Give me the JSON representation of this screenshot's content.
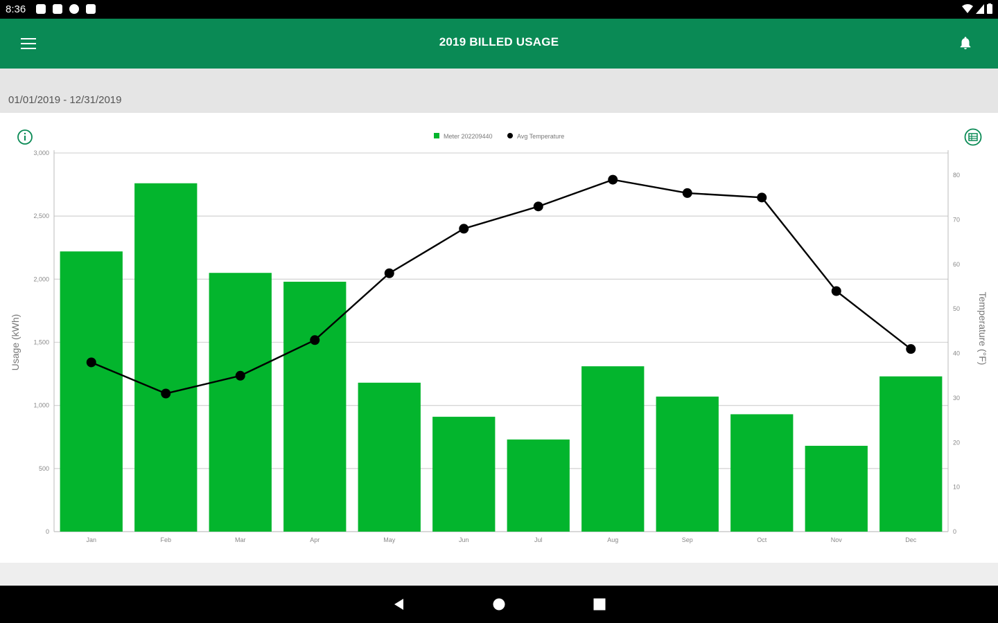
{
  "status_bar": {
    "time": "8:36"
  },
  "app_bar": {
    "title": "2019 BILLED USAGE"
  },
  "date_range": "01/01/2019 - 12/31/2019",
  "colors": {
    "primary": "#0a8a55",
    "bar": "#03b52d",
    "line": "#000000",
    "band": "#e5e5e5"
  },
  "icons": {
    "menu": "menu-icon",
    "bell": "bell-icon",
    "info": "info-icon",
    "table": "table-icon",
    "back": "back-icon",
    "home": "home-icon",
    "recents": "recents-icon"
  },
  "chart_data": {
    "type": "bar",
    "categories": [
      "Jan",
      "Feb",
      "Mar",
      "Apr",
      "May",
      "Jun",
      "Jul",
      "Aug",
      "Sep",
      "Oct",
      "Nov",
      "Dec"
    ],
    "series": [
      {
        "name": "Meter 202209440",
        "kind": "bar",
        "axis": "left",
        "values": [
          2220,
          2760,
          2050,
          1980,
          1180,
          910,
          730,
          1310,
          1070,
          930,
          680,
          1230
        ]
      },
      {
        "name": "Avg Temperature",
        "kind": "line",
        "axis": "right",
        "values": [
          38,
          31,
          35,
          43,
          58,
          68,
          73,
          79,
          76,
          75,
          54,
          41
        ]
      }
    ],
    "left_axis": {
      "label": "Usage (kWh)",
      "range": [
        0,
        3000
      ],
      "ticks": [
        "0",
        "500",
        "1,000",
        "1,500",
        "2,000",
        "2,500",
        "3,000"
      ]
    },
    "right_axis": {
      "label": "Temperature (°F)",
      "range": [
        0,
        85
      ],
      "ticks": [
        "0",
        "10",
        "20",
        "30",
        "40",
        "50",
        "60",
        "70",
        "80"
      ]
    },
    "legend": "top-center",
    "grid": true
  }
}
